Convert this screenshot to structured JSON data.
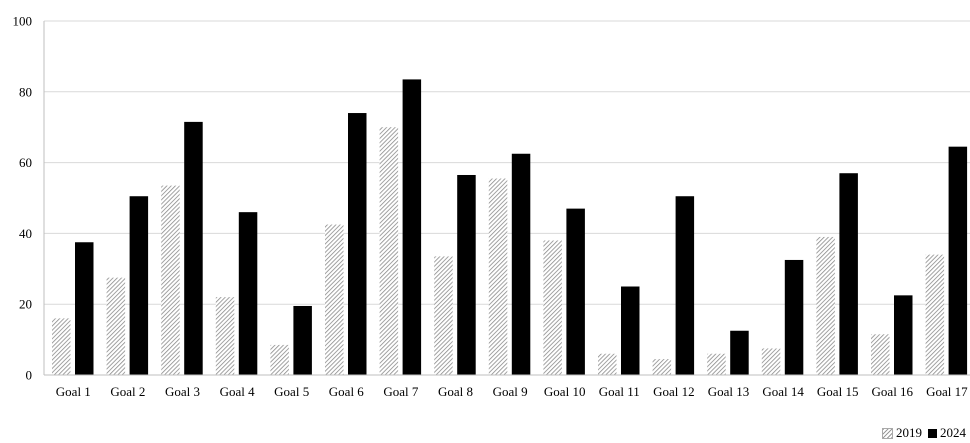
{
  "chart_data": {
    "type": "bar",
    "categories": [
      "Goal 1",
      "Goal 2",
      "Goal 3",
      "Goal 4",
      "Goal 5",
      "Goal 6",
      "Goal 7",
      "Goal 8",
      "Goal 9",
      "Goal 10",
      "Goal 11",
      "Goal 12",
      "Goal 13",
      "Goal 14",
      "Goal 15",
      "Goal 16",
      "Goal 17"
    ],
    "series": [
      {
        "name": "2019",
        "values": [
          16,
          27.5,
          53.5,
          22,
          8.5,
          42.5,
          70,
          33.5,
          55.5,
          38,
          6,
          4.5,
          6,
          7.5,
          39,
          11.5,
          34
        ],
        "color": "#9a9a9a",
        "pattern": "hatch"
      },
      {
        "name": "2024",
        "values": [
          37.5,
          50.5,
          71.5,
          46,
          19.5,
          74,
          83.5,
          56.5,
          62.5,
          47,
          25,
          50.5,
          12.5,
          32.5,
          57,
          22.5,
          64.5
        ],
        "color": "#000000",
        "pattern": "solid"
      }
    ],
    "ylim": [
      0,
      100
    ],
    "yticks": [
      0,
      20,
      40,
      60,
      80,
      100
    ],
    "grid": true,
    "legend_position": "bottom-right",
    "title": "",
    "xlabel": "",
    "ylabel": ""
  }
}
